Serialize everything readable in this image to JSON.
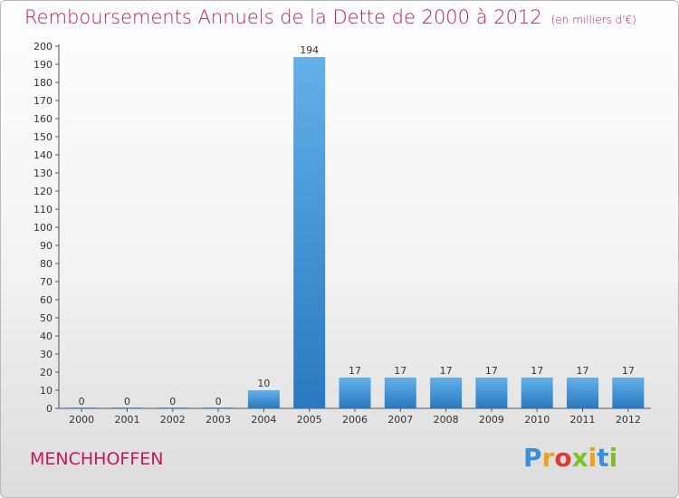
{
  "title": "Remboursements Annuels de la Dette de 2000 à 2012",
  "unit_note": "(en milliers d'€)",
  "commune": "MENCHHOFFEN",
  "logo": {
    "letters": [
      "P",
      "r",
      "o",
      "x",
      "i",
      "t",
      "i"
    ],
    "colors": [
      "#3a8fd9",
      "#f0a020",
      "#e03a3a",
      "#7fbf2a",
      "#f0a020",
      "#3a8fd9",
      "#7fbf2a"
    ]
  },
  "colors": {
    "bar": "#3a8fd9",
    "bar_light": "#63b0ea",
    "bar_dark": "#2a78bf",
    "title": "#c2185b"
  },
  "chart_data": {
    "type": "bar",
    "title": "Remboursements Annuels de la Dette de 2000 à 2012",
    "xlabel": "",
    "ylabel": "",
    "categories": [
      "2000",
      "2001",
      "2002",
      "2003",
      "2004",
      "2005",
      "2006",
      "2007",
      "2008",
      "2009",
      "2010",
      "2011",
      "2012"
    ],
    "values": [
      0,
      0,
      0,
      0,
      10,
      194,
      17,
      17,
      17,
      17,
      17,
      17,
      17
    ],
    "ylim": [
      0,
      200
    ],
    "ytick_step": 10,
    "grid": false,
    "legend": "none"
  }
}
